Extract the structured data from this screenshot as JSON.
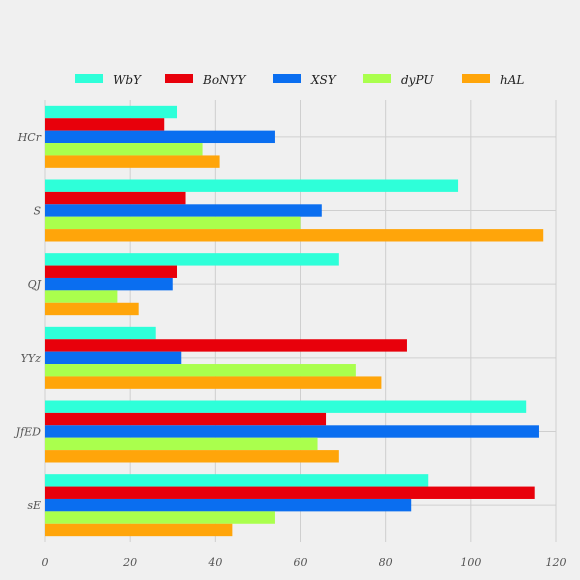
{
  "chart_data": {
    "type": "bar",
    "orientation": "horizontal",
    "categories": [
      "HCr",
      "S",
      "QJ",
      "YYz",
      "JfED",
      "sE"
    ],
    "series": [
      {
        "name": "WbY",
        "color": "#2effd9",
        "values": [
          31,
          97,
          69,
          26,
          113,
          90
        ]
      },
      {
        "name": "BoNYY",
        "color": "#e8000b",
        "values": [
          28,
          33,
          31,
          85,
          66,
          115
        ]
      },
      {
        "name": "XSY",
        "color": "#0a6ef0",
        "values": [
          54,
          65,
          30,
          32,
          116,
          86
        ]
      },
      {
        "name": "dyPU",
        "color": "#aaff4d",
        "values": [
          37,
          60,
          17,
          73,
          64,
          54
        ]
      },
      {
        "name": "hAL",
        "color": "#ffa50a",
        "values": [
          41,
          117,
          22,
          79,
          69,
          44
        ]
      }
    ],
    "x_ticks": [
      "0",
      "20",
      "40",
      "60",
      "80",
      "100",
      "120"
    ],
    "xlim": [
      0,
      120
    ],
    "grid": true,
    "legend_position": "top"
  }
}
